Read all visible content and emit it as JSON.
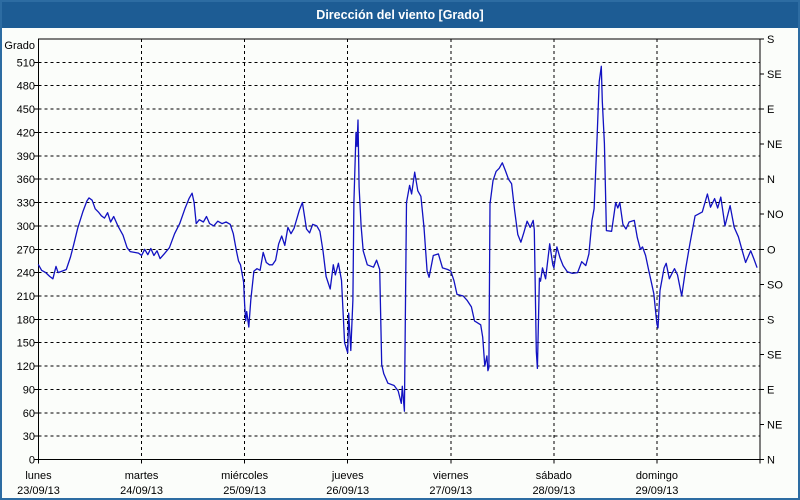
{
  "window": {
    "title": "Dirección del viento [Grado]"
  },
  "colors": {
    "titlebar_bg": "#1d5c94",
    "titlebar_text": "#ffffff",
    "window_border": "#2d6ca2",
    "background": "#fbfdfa",
    "axis": "#000000",
    "grid": "#000000",
    "series_line": "#1212c2"
  },
  "chart_data": {
    "type": "line",
    "title": "Dirección del viento [Grado]",
    "grid": "dashed",
    "legend_position": "none",
    "y_axis": {
      "title": "Grado",
      "min": 0,
      "max": 540,
      "tick_step": 30,
      "ticks": [
        0,
        30,
        60,
        90,
        120,
        150,
        180,
        210,
        240,
        270,
        300,
        330,
        360,
        390,
        420,
        450,
        480,
        510
      ]
    },
    "right_axis": {
      "tick_step_degrees": 45,
      "labels_top_to_bottom": [
        "S",
        "SE",
        "E",
        "NE",
        "N",
        "NO",
        "O",
        "SO",
        "S",
        "SE",
        "E",
        "NE",
        "N"
      ]
    },
    "x_axis": {
      "days": [
        {
          "label": "lunes",
          "date": "23/09/13"
        },
        {
          "label": "martes",
          "date": "24/09/13"
        },
        {
          "label": "miércoles",
          "date": "25/09/13"
        },
        {
          "label": "jueves",
          "date": "26/09/13"
        },
        {
          "label": "viernes",
          "date": "27/09/13"
        },
        {
          "label": "sábado",
          "date": "28/09/13"
        },
        {
          "label": "domingo",
          "date": "29/09/13"
        }
      ]
    },
    "series": [
      {
        "name": "Dirección del viento",
        "color": "#1212c2",
        "units": "Grado",
        "x_units": "days from 23/09/13 00:00",
        "points": [
          [
            0.0,
            250
          ],
          [
            0.03,
            243
          ],
          [
            0.07,
            240
          ],
          [
            0.11,
            235
          ],
          [
            0.14,
            232
          ],
          [
            0.17,
            248
          ],
          [
            0.19,
            240
          ],
          [
            0.23,
            242
          ],
          [
            0.27,
            244
          ],
          [
            0.31,
            260
          ],
          [
            0.34,
            275
          ],
          [
            0.38,
            297
          ],
          [
            0.43,
            318
          ],
          [
            0.47,
            332
          ],
          [
            0.49,
            336
          ],
          [
            0.52,
            333
          ],
          [
            0.55,
            322
          ],
          [
            0.58,
            318
          ],
          [
            0.61,
            313
          ],
          [
            0.64,
            310
          ],
          [
            0.67,
            317
          ],
          [
            0.7,
            305
          ],
          [
            0.73,
            312
          ],
          [
            0.77,
            300
          ],
          [
            0.82,
            288
          ],
          [
            0.86,
            272
          ],
          [
            0.89,
            267
          ],
          [
            0.93,
            266
          ],
          [
            0.97,
            265
          ],
          [
            1.0,
            262
          ],
          [
            1.03,
            270
          ],
          [
            1.06,
            263
          ],
          [
            1.09,
            271
          ],
          [
            1.12,
            262
          ],
          [
            1.15,
            268
          ],
          [
            1.18,
            258
          ],
          [
            1.22,
            264
          ],
          [
            1.27,
            272
          ],
          [
            1.32,
            290
          ],
          [
            1.37,
            303
          ],
          [
            1.42,
            322
          ],
          [
            1.46,
            335
          ],
          [
            1.49,
            342
          ],
          [
            1.51,
            330
          ],
          [
            1.53,
            303
          ],
          [
            1.56,
            308
          ],
          [
            1.6,
            305
          ],
          [
            1.63,
            312
          ],
          [
            1.66,
            303
          ],
          [
            1.7,
            300
          ],
          [
            1.74,
            306
          ],
          [
            1.78,
            303
          ],
          [
            1.82,
            305
          ],
          [
            1.86,
            302
          ],
          [
            1.89,
            290
          ],
          [
            1.92,
            268
          ],
          [
            1.94,
            255
          ],
          [
            1.96,
            250
          ],
          [
            1.99,
            228
          ],
          [
            2.0,
            200
          ],
          [
            2.01,
            178
          ],
          [
            2.02,
            190
          ],
          [
            2.04,
            170
          ],
          [
            2.06,
            205
          ],
          [
            2.09,
            242
          ],
          [
            2.12,
            245
          ],
          [
            2.15,
            243
          ],
          [
            2.18,
            266
          ],
          [
            2.21,
            253
          ],
          [
            2.24,
            250
          ],
          [
            2.27,
            250
          ],
          [
            2.3,
            256
          ],
          [
            2.33,
            277
          ],
          [
            2.36,
            287
          ],
          [
            2.39,
            275
          ],
          [
            2.42,
            298
          ],
          [
            2.45,
            290
          ],
          [
            2.48,
            297
          ],
          [
            2.53,
            320
          ],
          [
            2.56,
            330
          ],
          [
            2.6,
            296
          ],
          [
            2.63,
            291
          ],
          [
            2.66,
            302
          ],
          [
            2.7,
            300
          ],
          [
            2.73,
            293
          ],
          [
            2.76,
            268
          ],
          [
            2.79,
            235
          ],
          [
            2.83,
            219
          ],
          [
            2.86,
            250
          ],
          [
            2.88,
            237
          ],
          [
            2.91,
            252
          ],
          [
            2.94,
            230
          ],
          [
            2.97,
            150
          ],
          [
            3.0,
            137
          ],
          [
            3.01,
            188
          ],
          [
            3.03,
            140
          ],
          [
            3.05,
            205
          ],
          [
            3.06,
            330
          ],
          [
            3.08,
            420
          ],
          [
            3.09,
            402
          ],
          [
            3.1,
            436
          ],
          [
            3.11,
            350
          ],
          [
            3.13,
            300
          ],
          [
            3.15,
            268
          ],
          [
            3.19,
            250
          ],
          [
            3.25,
            247
          ],
          [
            3.28,
            256
          ],
          [
            3.31,
            244
          ],
          [
            3.33,
            122
          ],
          [
            3.35,
            110
          ],
          [
            3.39,
            98
          ],
          [
            3.45,
            95
          ],
          [
            3.49,
            88
          ],
          [
            3.52,
            72
          ],
          [
            3.53,
            94
          ],
          [
            3.55,
            62
          ],
          [
            3.57,
            330
          ],
          [
            3.6,
            352
          ],
          [
            3.62,
            341
          ],
          [
            3.65,
            369
          ],
          [
            3.68,
            345
          ],
          [
            3.71,
            338
          ],
          [
            3.74,
            298
          ],
          [
            3.77,
            242
          ],
          [
            3.79,
            234
          ],
          [
            3.83,
            262
          ],
          [
            3.88,
            264
          ],
          [
            3.92,
            246
          ],
          [
            3.97,
            244
          ],
          [
            4.0,
            242
          ],
          [
            4.03,
            230
          ],
          [
            4.06,
            212
          ],
          [
            4.12,
            210
          ],
          [
            4.16,
            204
          ],
          [
            4.2,
            196
          ],
          [
            4.23,
            178
          ],
          [
            4.29,
            173
          ],
          [
            4.31,
            157
          ],
          [
            4.33,
            120
          ],
          [
            4.35,
            133
          ],
          [
            4.36,
            114
          ],
          [
            4.37,
            118
          ],
          [
            4.38,
            328
          ],
          [
            4.41,
            358
          ],
          [
            4.44,
            370
          ],
          [
            4.47,
            374
          ],
          [
            4.5,
            381
          ],
          [
            4.53,
            371
          ],
          [
            4.56,
            360
          ],
          [
            4.59,
            354
          ],
          [
            4.62,
            319
          ],
          [
            4.65,
            289
          ],
          [
            4.68,
            279
          ],
          [
            4.71,
            292
          ],
          [
            4.74,
            306
          ],
          [
            4.77,
            298
          ],
          [
            4.8,
            307
          ],
          [
            4.81,
            295
          ],
          [
            4.83,
            139
          ],
          [
            4.84,
            117
          ],
          [
            4.86,
            233
          ],
          [
            4.87,
            229
          ],
          [
            4.89,
            246
          ],
          [
            4.92,
            232
          ],
          [
            4.96,
            277
          ],
          [
            4.99,
            250
          ],
          [
            5.0,
            246
          ],
          [
            5.03,
            273
          ],
          [
            5.06,
            259
          ],
          [
            5.09,
            249
          ],
          [
            5.13,
            241
          ],
          [
            5.18,
            239
          ],
          [
            5.23,
            240
          ],
          [
            5.27,
            254
          ],
          [
            5.31,
            249
          ],
          [
            5.34,
            264
          ],
          [
            5.37,
            307
          ],
          [
            5.39,
            322
          ],
          [
            5.42,
            414
          ],
          [
            5.44,
            485
          ],
          [
            5.46,
            505
          ],
          [
            5.47,
            460
          ],
          [
            5.49,
            406
          ],
          [
            5.51,
            294
          ],
          [
            5.56,
            293
          ],
          [
            5.6,
            330
          ],
          [
            5.62,
            323
          ],
          [
            5.64,
            330
          ],
          [
            5.67,
            302
          ],
          [
            5.7,
            296
          ],
          [
            5.73,
            305
          ],
          [
            5.78,
            307
          ],
          [
            5.81,
            285
          ],
          [
            5.84,
            270
          ],
          [
            5.86,
            273
          ],
          [
            5.89,
            262
          ],
          [
            5.92,
            243
          ],
          [
            5.95,
            225
          ],
          [
            5.97,
            213
          ],
          [
            6.0,
            174
          ],
          [
            6.01,
            169
          ],
          [
            6.03,
            217
          ],
          [
            6.07,
            246
          ],
          [
            6.09,
            252
          ],
          [
            6.12,
            232
          ],
          [
            6.15,
            240
          ],
          [
            6.17,
            245
          ],
          [
            6.2,
            237
          ],
          [
            6.24,
            210
          ],
          [
            6.28,
            246
          ],
          [
            6.32,
            277
          ],
          [
            6.37,
            313
          ],
          [
            6.4,
            315
          ],
          [
            6.44,
            318
          ],
          [
            6.49,
            341
          ],
          [
            6.52,
            324
          ],
          [
            6.56,
            335
          ],
          [
            6.59,
            323
          ],
          [
            6.62,
            337
          ],
          [
            6.66,
            300
          ],
          [
            6.71,
            326
          ],
          [
            6.75,
            298
          ],
          [
            6.79,
            286
          ],
          [
            6.82,
            272
          ],
          [
            6.86,
            253
          ],
          [
            6.91,
            268
          ],
          [
            6.94,
            258
          ],
          [
            6.97,
            247
          ]
        ]
      }
    ]
  }
}
